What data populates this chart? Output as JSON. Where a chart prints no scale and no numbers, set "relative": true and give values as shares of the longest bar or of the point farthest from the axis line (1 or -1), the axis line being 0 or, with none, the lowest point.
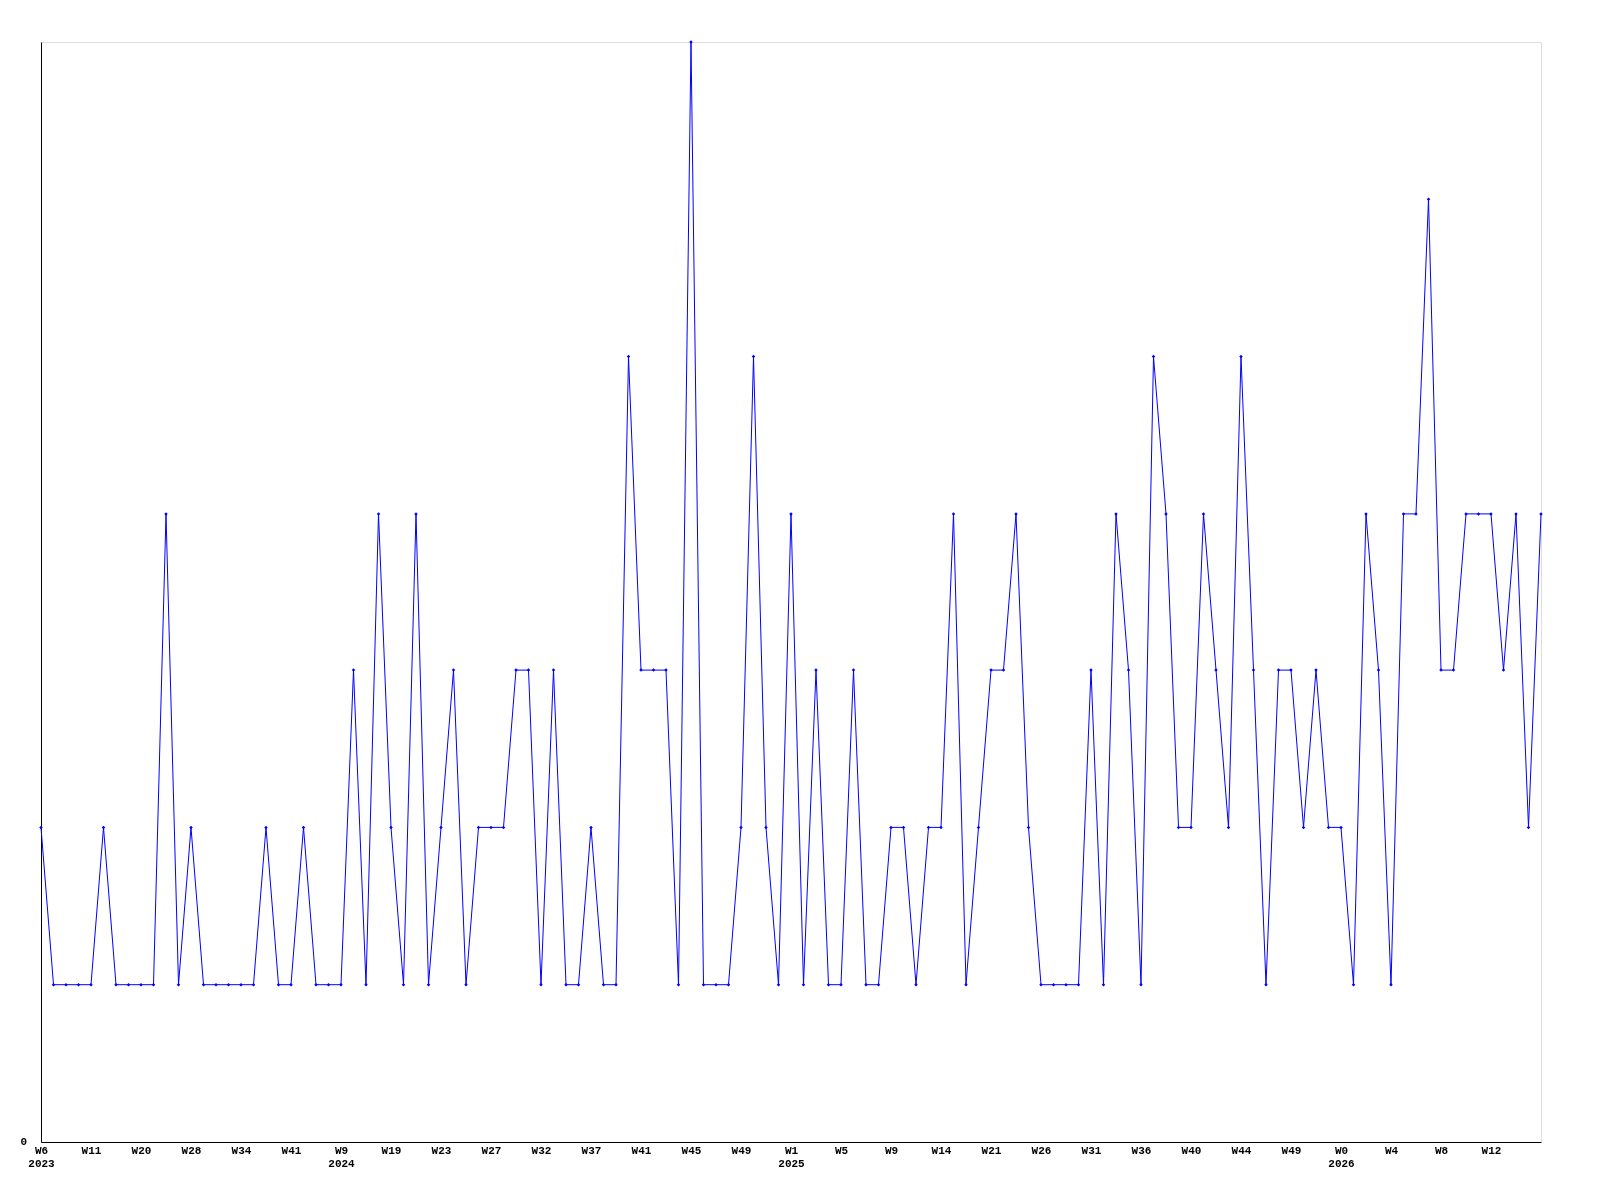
{
  "chart_data": {
    "type": "line",
    "relative": true,
    "categories": [
      "W6\n2023",
      null,
      null,
      null,
      "W11",
      null,
      null,
      null,
      "W20",
      null,
      null,
      null,
      "W28",
      null,
      null,
      null,
      "W34",
      null,
      null,
      null,
      "W41",
      null,
      null,
      null,
      "W9\n2024",
      null,
      null,
      null,
      "W19",
      null,
      null,
      null,
      "W23",
      null,
      null,
      null,
      "W27",
      null,
      null,
      null,
      "W32",
      null,
      null,
      null,
      "W37",
      null,
      null,
      null,
      "W41",
      null,
      null,
      null,
      "W45",
      null,
      null,
      null,
      "W49",
      null,
      null,
      null,
      "W1\n2025",
      null,
      null,
      null,
      "W5",
      null,
      null,
      null,
      "W9",
      null,
      null,
      null,
      "W14",
      null,
      null,
      null,
      "W21",
      null,
      null,
      null,
      "W26",
      null,
      null,
      null,
      "W31",
      null,
      null,
      null,
      "W36",
      null,
      null,
      null,
      "W40",
      null,
      null,
      null,
      "W44",
      null,
      null,
      null,
      "W49",
      null,
      null,
      null,
      "W0\n2026",
      null,
      null,
      null,
      "W4",
      null,
      null,
      null,
      "W8",
      null,
      null,
      null,
      "W12",
      null,
      null,
      null,
      null
    ],
    "series": [
      {
        "color": "#0000ff",
        "values": [
          0.286,
          0.143,
          0.143,
          0.143,
          0.143,
          0.286,
          0.143,
          0.143,
          0.143,
          0.143,
          0.571,
          0.143,
          0.286,
          0.143,
          0.143,
          0.143,
          0.143,
          0.143,
          0.286,
          0.143,
          0.143,
          0.286,
          0.143,
          0.143,
          0.143,
          0.429,
          0.143,
          0.571,
          0.286,
          0.143,
          0.571,
          0.143,
          0.286,
          0.429,
          0.143,
          0.286,
          0.286,
          0.286,
          0.429,
          0.429,
          0.143,
          0.429,
          0.143,
          0.143,
          0.286,
          0.143,
          0.143,
          0.714,
          0.429,
          0.429,
          0.429,
          0.143,
          1,
          0.143,
          0.143,
          0.143,
          0.286,
          0.714,
          0.286,
          0.143,
          0.571,
          0.143,
          0.429,
          0.143,
          0.143,
          0.429,
          0.143,
          0.143,
          0.286,
          0.286,
          0.143,
          0.286,
          0.286,
          0.571,
          0.143,
          0.286,
          0.429,
          0.429,
          0.571,
          0.286,
          0.143,
          0.143,
          0.143,
          0.143,
          0.429,
          0.143,
          0.571,
          0.429,
          0.143,
          0.714,
          0.571,
          0.286,
          0.286,
          0.571,
          0.429,
          0.286,
          0.714,
          0.429,
          0.143,
          0.429,
          0.429,
          0.286,
          0.429,
          0.286,
          0.286,
          0.143,
          0.571,
          0.429,
          0.143,
          0.571,
          0.571,
          0.857,
          0.429,
          0.429,
          0.571,
          0.571,
          0.571,
          0.429,
          0.571,
          0.286,
          0.571
        ]
      }
    ],
    "marker": "diamond",
    "line_style": "solid",
    "grid": false,
    "annotations": [
      "0"
    ]
  }
}
